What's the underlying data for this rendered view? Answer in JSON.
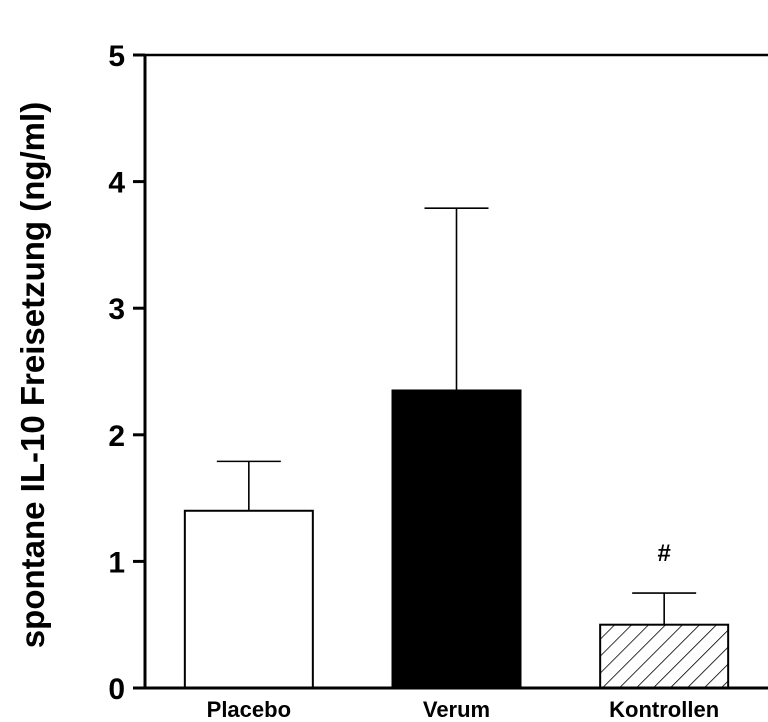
{
  "chart_data": {
    "type": "bar",
    "categories": [
      "Placebo",
      "Verum",
      "Kontrollen"
    ],
    "values": [
      1.4,
      2.35,
      0.5
    ],
    "errors": [
      0.39,
      1.44,
      0.25
    ],
    "fills": [
      "#ffffff",
      "#000000",
      "hatch"
    ],
    "annotations": [
      "",
      "",
      "#"
    ],
    "ylabel": "spontane IL-10 Freisetzung (ng/ml)",
    "xlabel": "",
    "ylim": [
      0,
      5
    ],
    "yticks": [
      "0",
      "1",
      "2",
      "3",
      "4",
      "5"
    ],
    "grid": false
  }
}
